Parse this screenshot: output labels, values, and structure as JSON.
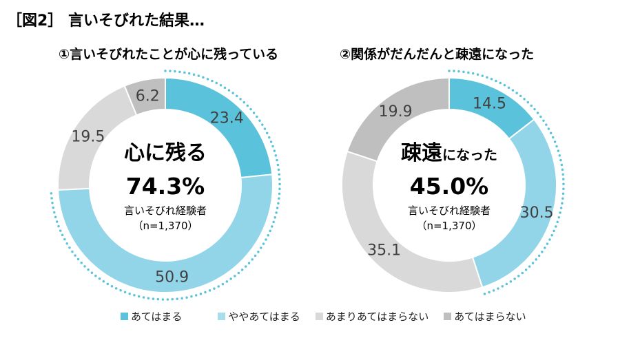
{
  "title": "［図2］ 言いそびれた結果…",
  "colors": [
    "#5BC2DC",
    "#93D5E8",
    "#D9D9D9",
    "#BFBFBF"
  ],
  "chart_data": [
    {
      "type": "donut",
      "title": "①言いそびれたことが心に残っている",
      "categories": [
        "あてはまる",
        "ややあてはまる",
        "あまりあてはまらない",
        "あてはまらない"
      ],
      "values": [
        23.4,
        50.9,
        19.5,
        6.2
      ],
      "labels": [
        "23.4",
        "50.9",
        "19.5",
        "6.2"
      ],
      "center": {
        "head_big": "心に残る",
        "head_small": "",
        "percent": "74.3%",
        "sub": "言いそびれ経験者",
        "n": "（n=1,370）"
      },
      "highlight_total": 74.3
    },
    {
      "type": "donut",
      "title": "②関係がだんだんと疎遠になった",
      "categories": [
        "あてはまる",
        "ややあてはまる",
        "あまりあてはまらない",
        "あてはまらない"
      ],
      "values": [
        14.5,
        30.5,
        35.1,
        19.9
      ],
      "labels": [
        "14.5",
        "30.5",
        "35.1",
        "19.9"
      ],
      "center": {
        "head_big": "疎遠",
        "head_small": "になった",
        "percent": "45.0%",
        "sub": "言いそびれ経験者",
        "n": "（n=1,370）"
      },
      "highlight_total": 45.0
    }
  ],
  "legend": [
    "あてはまる",
    "ややあてはまる",
    "あまりあてはまらない",
    "あてはまらない"
  ]
}
